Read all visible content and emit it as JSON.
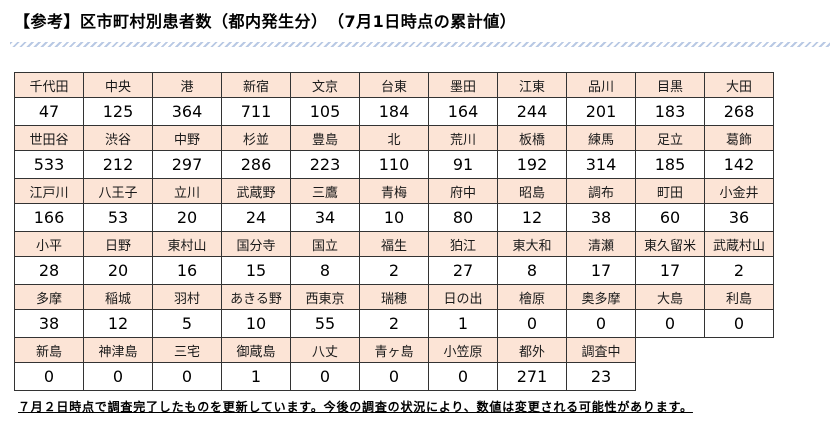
{
  "title": "【参考】区市町村別患者数（都内発生分）　（7月1日時点の累計値）",
  "rows": [
    {
      "names": [
        "千代田",
        "中央",
        "港",
        "新宿",
        "文京",
        "台東",
        "墨田",
        "江東",
        "品川",
        "目黒",
        "大田"
      ],
      "values": [
        "47",
        "125",
        "364",
        "711",
        "105",
        "184",
        "164",
        "244",
        "201",
        "183",
        "268"
      ]
    },
    {
      "names": [
        "世田谷",
        "渋谷",
        "中野",
        "杉並",
        "豊島",
        "北",
        "荒川",
        "板橋",
        "練馬",
        "足立",
        "葛飾"
      ],
      "values": [
        "533",
        "212",
        "297",
        "286",
        "223",
        "110",
        "91",
        "192",
        "314",
        "185",
        "142"
      ]
    },
    {
      "names": [
        "江戸川",
        "八王子",
        "立川",
        "武蔵野",
        "三鷹",
        "青梅",
        "府中",
        "昭島",
        "調布",
        "町田",
        "小金井"
      ],
      "values": [
        "166",
        "53",
        "20",
        "24",
        "34",
        "10",
        "80",
        "12",
        "38",
        "60",
        "36"
      ]
    },
    {
      "names": [
        "小平",
        "日野",
        "東村山",
        "国分寺",
        "国立",
        "福生",
        "狛江",
        "東大和",
        "清瀬",
        "東久留米",
        "武蔵村山"
      ],
      "values": [
        "28",
        "20",
        "16",
        "15",
        "8",
        "2",
        "27",
        "8",
        "17",
        "17",
        "2"
      ]
    },
    {
      "names": [
        "多摩",
        "稲城",
        "羽村",
        "あきる野",
        "西東京",
        "瑞穂",
        "日の出",
        "檜原",
        "奥多摩",
        "大島",
        "利島"
      ],
      "values": [
        "38",
        "12",
        "5",
        "10",
        "55",
        "2",
        "1",
        "0",
        "0",
        "0",
        "0"
      ]
    },
    {
      "names": [
        "新島",
        "神津島",
        "三宅",
        "御蔵島",
        "八丈",
        "青ヶ島",
        "小笠原",
        "都外",
        "調査中"
      ],
      "values": [
        "0",
        "0",
        "0",
        "1",
        "0",
        "0",
        "0",
        "271",
        "23"
      ]
    }
  ],
  "note": "７月２日時点で調査完了したものを更新しています。今後の調査の状況により、数値は変更される可能性があります。"
}
